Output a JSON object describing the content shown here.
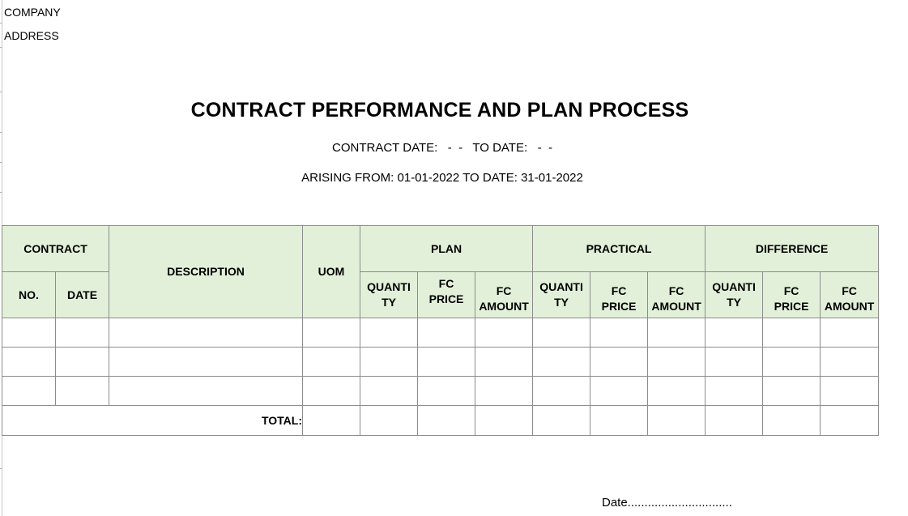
{
  "header": {
    "company": "COMPANY",
    "address": "ADDRESS"
  },
  "report": {
    "title": "CONTRACT PERFORMANCE AND PLAN PROCESS",
    "contract_date_line": "CONTRACT DATE:   -  -   TO DATE:   -  -",
    "arising_line": "ARISING FROM: 01-01-2022 TO DATE: 31-01-2022"
  },
  "table": {
    "groups": {
      "contract": "CONTRACT",
      "description": "DESCRIPTION",
      "uom": "UOM",
      "plan": "PLAN",
      "practical": "PRACTICAL",
      "difference": "DIFFERENCE"
    },
    "sub": {
      "no": "NO.",
      "date": "DATE",
      "quantity_a": "QUANTI",
      "quantity_b": "TY",
      "fc_price_a": "FC",
      "fc_price_b": "PRICE",
      "fc_amount_a": "FC",
      "fc_amount_b": "AMOUNT"
    },
    "total_label": "TOTAL:"
  },
  "footer": {
    "date_line": "Date..............................."
  }
}
